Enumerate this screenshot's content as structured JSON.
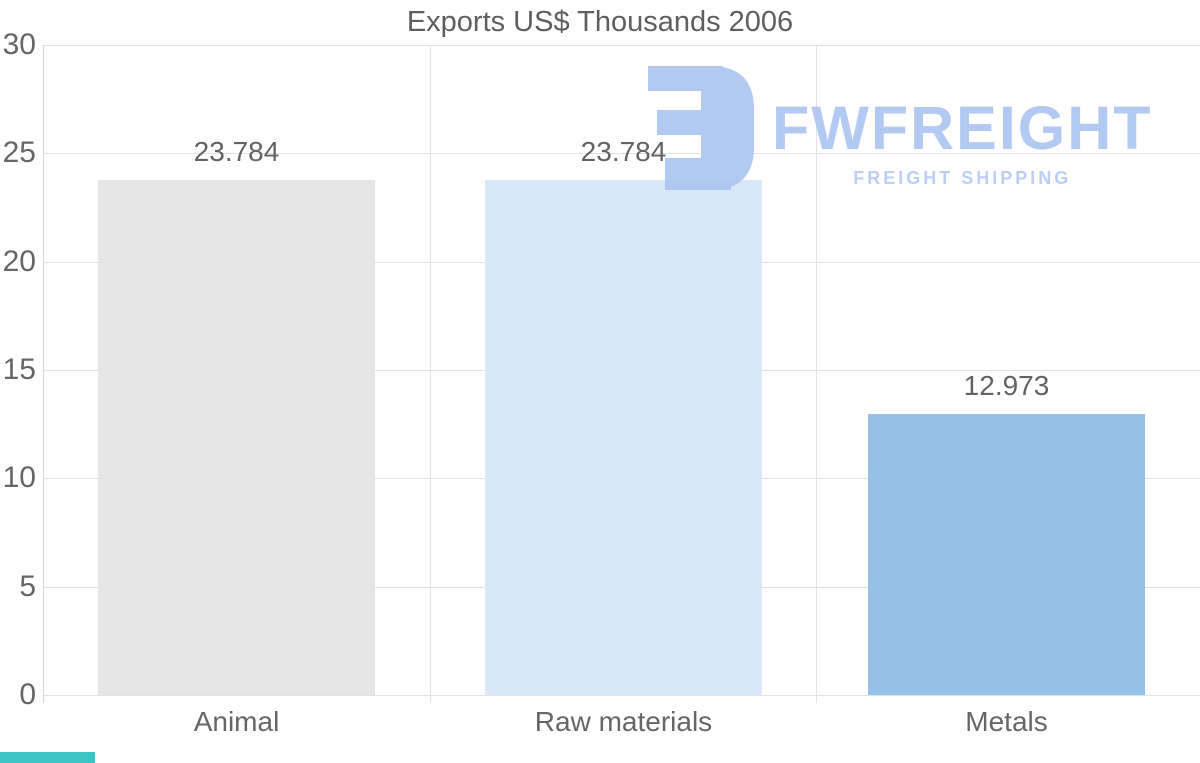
{
  "title": "Exports US$ Thousands 2006",
  "chart_data": {
    "type": "bar",
    "title": "Exports US$ Thousands 2006",
    "categories": [
      "Animal",
      "Raw materials",
      "Metals"
    ],
    "values": [
      23.784,
      23.784,
      12.973
    ],
    "value_labels": [
      "23.784",
      "23.784",
      "12.973"
    ],
    "bar_colors": [
      "#e6e6e6",
      "#d9e8f8",
      "#96c1e7"
    ],
    "xlabel": "",
    "ylabel": "",
    "ylim": [
      0,
      30
    ],
    "yticks": [
      0,
      5,
      10,
      15,
      20,
      25,
      30
    ],
    "grid": true,
    "legend": false
  },
  "watermark": {
    "brand": "FWFREIGHT",
    "tagline": "FREIGHT SHIPPING",
    "brand_color": "#acc5f1",
    "tagline_color": "#b5cbf3"
  },
  "colors": {
    "background": "#ffffff",
    "text": "#606060",
    "gridline": "#e2e2e2",
    "accent_teal": "#3cc4c4"
  }
}
